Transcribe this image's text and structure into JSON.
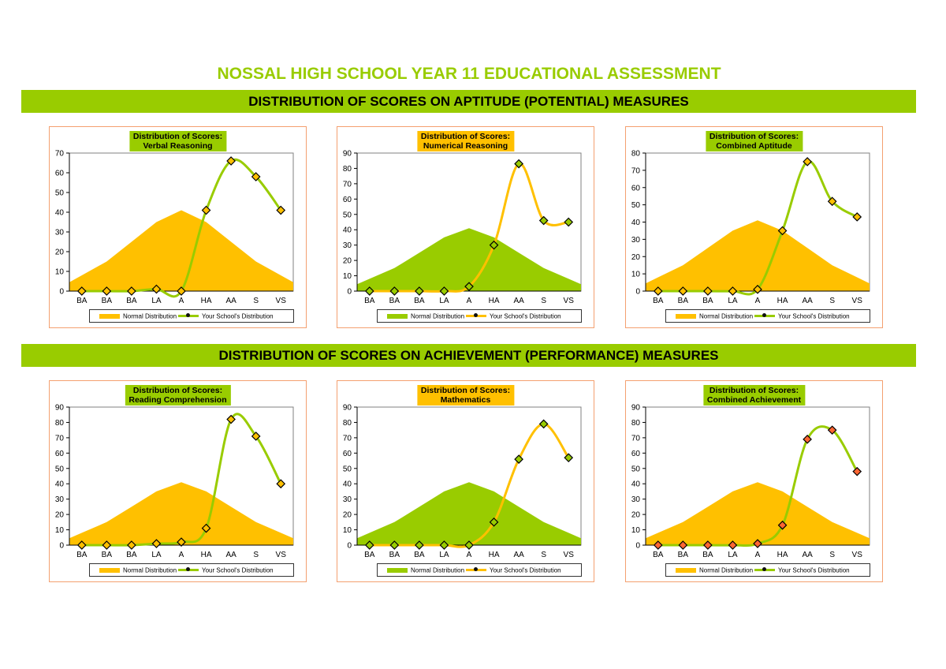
{
  "page": {
    "title": "NOSSAL HIGH SCHOOL YEAR 11 EDUCATIONAL ASSESSMENT",
    "section1": "DISTRIBUTION OF SCORES ON APTITUDE (POTENTIAL) MEASURES",
    "section2": "DISTRIBUTION OF SCORES ON ACHIEVEMENT (PERFORMANCE) MEASURES"
  },
  "colors": {
    "green": "#99cc00",
    "orange": "#ffc000",
    "marker_red": "#ff6633",
    "panel_border": "#f4a070"
  },
  "chart_data": [
    {
      "type": "area+line",
      "title_line1": "Distribution of Scores:",
      "title_line2": "Verbal Reasoning",
      "categories": [
        "BA",
        "BA",
        "BA",
        "LA",
        "A",
        "HA",
        "AA",
        "S",
        "VS"
      ],
      "ylim": [
        0,
        70
      ],
      "yticks": [
        0,
        10,
        20,
        30,
        40,
        50,
        60,
        70
      ],
      "normal_color": "#ffc000",
      "line_color": "#99cc00",
      "marker_color": "#ffc000",
      "title_bg": "#99cc00",
      "series": [
        {
          "name": "Normal Distribution",
          "values": [
            8,
            15,
            25,
            35,
            41,
            35,
            25,
            15,
            8
          ]
        },
        {
          "name": "Your School's Distribution",
          "values": [
            0,
            0,
            0,
            1,
            0,
            41,
            66,
            58,
            41
          ]
        }
      ],
      "legend": [
        "Normal Distribution",
        "Your School's Distribution"
      ]
    },
    {
      "type": "area+line",
      "title_line1": "Distribution of Scores:",
      "title_line2": "Numerical Reasoning",
      "categories": [
        "BA",
        "BA",
        "BA",
        "LA",
        "A",
        "HA",
        "AA",
        "S",
        "VS"
      ],
      "ylim": [
        0,
        90
      ],
      "yticks": [
        0,
        10,
        20,
        30,
        40,
        50,
        60,
        70,
        80,
        90
      ],
      "normal_color": "#99cc00",
      "line_color": "#ffc000",
      "marker_color": "#99cc00",
      "title_bg": "#ffc000",
      "series": [
        {
          "name": "Normal Distribution",
          "values": [
            8,
            15,
            25,
            35,
            41,
            35,
            25,
            15,
            8
          ]
        },
        {
          "name": "Your School's Distribution",
          "values": [
            0,
            0,
            0,
            0,
            3,
            30,
            83,
            46,
            45
          ]
        }
      ],
      "legend": [
        "Normal Distribution",
        "Your School's Distribution"
      ]
    },
    {
      "type": "area+line",
      "title_line1": "Distribution of Scores:",
      "title_line2": "Combined Aptitude",
      "categories": [
        "BA",
        "BA",
        "BA",
        "LA",
        "A",
        "HA",
        "AA",
        "S",
        "VS"
      ],
      "ylim": [
        0,
        80
      ],
      "yticks": [
        0,
        10,
        20,
        30,
        40,
        50,
        60,
        70,
        80
      ],
      "normal_color": "#ffc000",
      "line_color": "#99cc00",
      "marker_color": "#ffc000",
      "title_bg": "#99cc00",
      "series": [
        {
          "name": "Normal Distribution",
          "values": [
            8,
            15,
            25,
            35,
            41,
            35,
            25,
            15,
            8
          ]
        },
        {
          "name": "Your School's Distribution",
          "values": [
            0,
            0,
            0,
            0,
            1,
            35,
            75,
            52,
            43
          ]
        }
      ],
      "legend": [
        "Normal Distribution",
        "Your School's Distribution"
      ]
    },
    {
      "type": "area+line",
      "title_line1": "Distribution of Scores:",
      "title_line2": "Reading Comprehension",
      "categories": [
        "BA",
        "BA",
        "BA",
        "LA",
        "A",
        "HA",
        "AA",
        "S",
        "VS"
      ],
      "ylim": [
        0,
        90
      ],
      "yticks": [
        0,
        10,
        20,
        30,
        40,
        50,
        60,
        70,
        80,
        90
      ],
      "normal_color": "#ffc000",
      "line_color": "#99cc00",
      "marker_color": "#ffc000",
      "title_bg": "#99cc00",
      "series": [
        {
          "name": "Normal Distribution",
          "values": [
            8,
            15,
            25,
            35,
            41,
            35,
            25,
            15,
            8
          ]
        },
        {
          "name": "Your School's Distribution",
          "values": [
            0,
            0,
            0,
            1,
            2,
            11,
            82,
            71,
            40
          ]
        }
      ],
      "legend": [
        "Normal Distribution",
        "Your School's Distribution"
      ]
    },
    {
      "type": "area+line",
      "title_line1": "Distribution of Scores:",
      "title_line2": "Mathematics",
      "categories": [
        "BA",
        "BA",
        "BA",
        "LA",
        "A",
        "HA",
        "AA",
        "S",
        "VS"
      ],
      "ylim": [
        0,
        90
      ],
      "yticks": [
        0,
        10,
        20,
        30,
        40,
        50,
        60,
        70,
        80,
        90
      ],
      "normal_color": "#99cc00",
      "line_color": "#ffc000",
      "marker_color": "#99cc00",
      "title_bg": "#ffc000",
      "series": [
        {
          "name": "Normal Distribution",
          "values": [
            8,
            15,
            25,
            35,
            41,
            35,
            25,
            15,
            8
          ]
        },
        {
          "name": "Your School's Distribution",
          "values": [
            0,
            0,
            0,
            0,
            0,
            15,
            56,
            79,
            57
          ]
        }
      ],
      "legend": [
        "Normal Distribution",
        "Your School's Distribution"
      ]
    },
    {
      "type": "area+line",
      "title_line1": "Distribution of Scores:",
      "title_line2": "Combined Achievement",
      "categories": [
        "BA",
        "BA",
        "BA",
        "LA",
        "A",
        "HA",
        "AA",
        "S",
        "VS"
      ],
      "ylim": [
        0,
        90
      ],
      "yticks": [
        0,
        10,
        20,
        30,
        40,
        50,
        60,
        70,
        80,
        90
      ],
      "normal_color": "#ffc000",
      "line_color": "#99cc00",
      "marker_color": "#ff6633",
      "title_bg": "#99cc00",
      "series": [
        {
          "name": "Normal Distribution",
          "values": [
            8,
            15,
            25,
            35,
            41,
            35,
            25,
            15,
            8
          ]
        },
        {
          "name": "Your School's Distribution",
          "values": [
            0,
            0,
            0,
            0,
            1,
            13,
            69,
            75,
            48
          ]
        }
      ],
      "legend": [
        "Normal Distribution",
        "Your School's Distribution"
      ]
    }
  ]
}
